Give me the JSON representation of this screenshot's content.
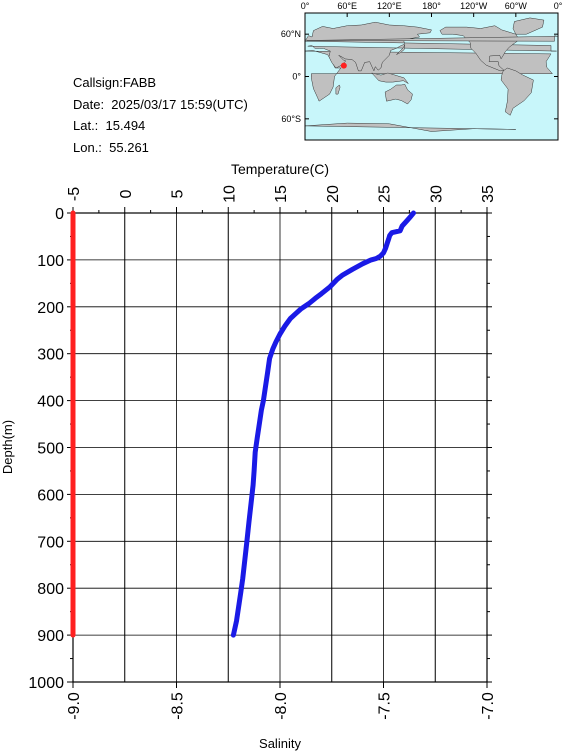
{
  "info": {
    "callsign": "Callsign:FABB",
    "date": "Date:  2025/03/17 15:59(UTC)",
    "lat": "Lat.:  15.494",
    "lon": "Lon.:  55.261"
  },
  "map": {
    "top_labels": [
      "0°",
      "60°E",
      "120°E",
      "180°",
      "120°W",
      "60°W",
      "0°"
    ],
    "lat_labels": [
      "60°N",
      "0°",
      "60°S"
    ],
    "ocean_color": "#c8f6fa",
    "land_color": "#c0c0c0",
    "marker": {
      "lon": 55.261,
      "lat": 15.494,
      "color": "#ff2020"
    }
  },
  "chart_data": {
    "type": "line",
    "ylabel": "Depth(m)",
    "ylim": [
      1000,
      0
    ],
    "yticks": [
      0,
      100,
      200,
      300,
      400,
      500,
      600,
      700,
      800,
      900,
      1000
    ],
    "temperature_axis": {
      "label": "Temperature(C)",
      "range": [
        -5,
        35
      ],
      "ticks": [
        -5,
        0,
        5,
        10,
        15,
        20,
        25,
        30,
        35
      ]
    },
    "salinity_axis": {
      "label": "Salinity",
      "range": [
        -9.0,
        -7.0
      ],
      "ticks": [
        "-9.0",
        "-8.5",
        "-8.0",
        "-7.5",
        "-7.0"
      ]
    },
    "series": [
      {
        "axis": "temperature",
        "color": "#1a1ae6",
        "points": [
          [
            27.9,
            0
          ],
          [
            27.6,
            8
          ],
          [
            27.2,
            18
          ],
          [
            26.8,
            28
          ],
          [
            26.6,
            38
          ],
          [
            25.8,
            42
          ],
          [
            25.6,
            48
          ],
          [
            25.5,
            55
          ],
          [
            25.4,
            62
          ],
          [
            25.2,
            75
          ],
          [
            25.0,
            85
          ],
          [
            24.7,
            92
          ],
          [
            24.3,
            97
          ],
          [
            23.8,
            100
          ],
          [
            23.0,
            108
          ],
          [
            22.0,
            120
          ],
          [
            21.0,
            133
          ],
          [
            20.5,
            142
          ],
          [
            19.8,
            158
          ],
          [
            19.0,
            172
          ],
          [
            18.4,
            182
          ],
          [
            17.8,
            193
          ],
          [
            17.0,
            205
          ],
          [
            16.5,
            215
          ],
          [
            16.0,
            225
          ],
          [
            15.5,
            240
          ],
          [
            15.0,
            258
          ],
          [
            14.6,
            275
          ],
          [
            14.3,
            290
          ],
          [
            14.0,
            310
          ],
          [
            13.8,
            340
          ],
          [
            13.6,
            370
          ],
          [
            13.4,
            400
          ],
          [
            13.2,
            420
          ],
          [
            13.0,
            450
          ],
          [
            12.8,
            480
          ],
          [
            12.6,
            510
          ],
          [
            12.5,
            550
          ],
          [
            12.4,
            580
          ],
          [
            12.2,
            620
          ],
          [
            12.0,
            660
          ],
          [
            11.8,
            700
          ],
          [
            11.6,
            740
          ],
          [
            11.4,
            780
          ],
          [
            11.2,
            810
          ],
          [
            11.0,
            840
          ],
          [
            10.8,
            870
          ],
          [
            10.5,
            900
          ]
        ]
      },
      {
        "axis": "salinity",
        "color": "#ff2020",
        "points": [
          [
            -9.0,
            0
          ],
          [
            -9.0,
            900
          ]
        ]
      }
    ]
  }
}
